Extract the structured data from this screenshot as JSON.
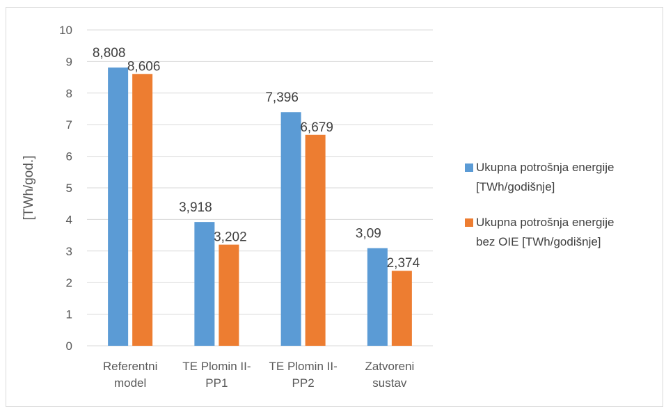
{
  "chart_data": {
    "type": "bar",
    "categories": [
      [
        "Referentni",
        "model"
      ],
      [
        "TE Plomin II-",
        "PP1"
      ],
      [
        "TE Plomin II-",
        "PP2"
      ],
      [
        "Zatvoreni",
        "sustav"
      ]
    ],
    "series": [
      {
        "name_lines": [
          "Ukupna potrošnja energije",
          "[TWh/godišnje]"
        ],
        "color": "#5b9bd5",
        "values": [
          8.808,
          3.918,
          7.396,
          3.09
        ],
        "labels": [
          "8,808",
          "3,918",
          "7,396",
          "3,09"
        ]
      },
      {
        "name_lines": [
          "Ukupna potrošnja energije",
          "bez OIE [TWh/godišnje]"
        ],
        "color": "#ed7d31",
        "values": [
          8.606,
          3.202,
          6.679,
          2.374
        ],
        "labels": [
          "8,606",
          "3,202",
          "6,679",
          "2,374"
        ]
      }
    ],
    "ylabel": "[TWh/god.]",
    "ylim": [
      0,
      10
    ],
    "yticks": [
      "0",
      "1",
      "2",
      "3",
      "4",
      "5",
      "6",
      "7",
      "8",
      "9",
      "10"
    ],
    "grid": true,
    "gridColor": "#d9d9d9",
    "legend_position": "right"
  }
}
